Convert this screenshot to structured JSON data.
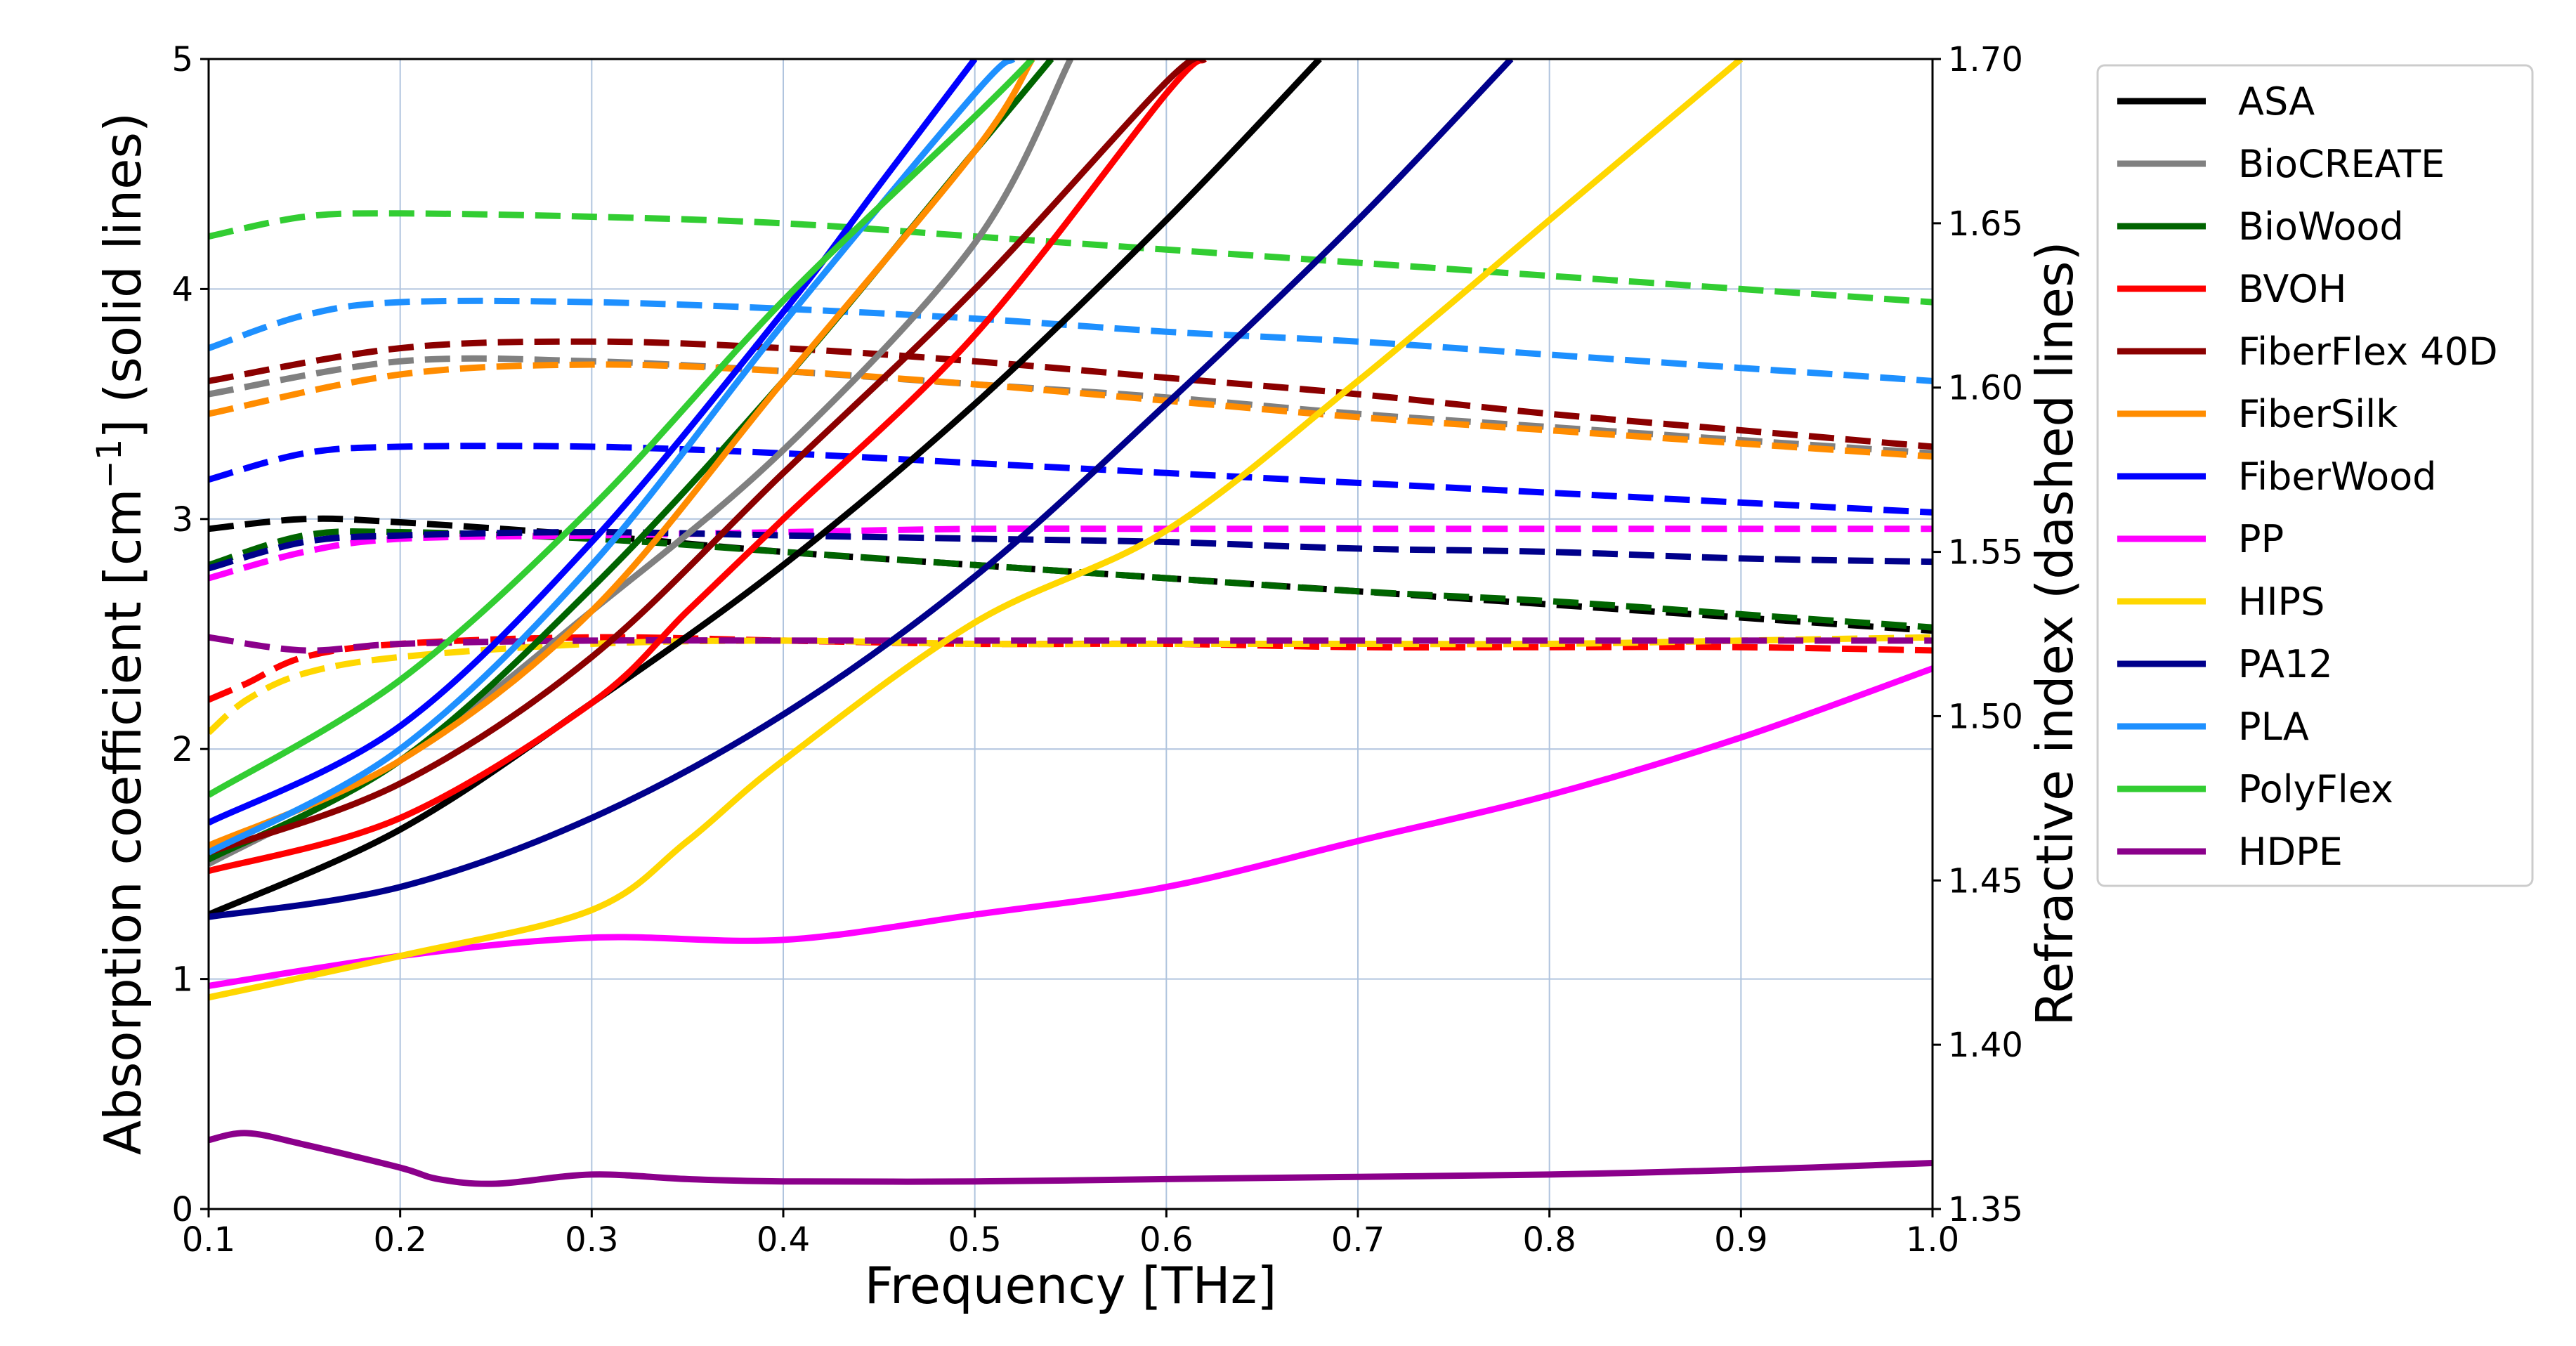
{
  "chart_data": {
    "type": "line",
    "xlabel": "Frequency [THz]",
    "ylabel_left_prefix": "Absorption coefficient [cm",
    "ylabel_left_sup": "−1",
    "ylabel_left_suffix": "] (solid lines)",
    "ylabel_right": "Refractive index (dashed lines)",
    "xlim": [
      0.1,
      1.0
    ],
    "ylim_left": [
      0,
      5
    ],
    "ylim_right": [
      1.35,
      1.7
    ],
    "x_ticks": [
      "0.1",
      "0.2",
      "0.3",
      "0.4",
      "0.5",
      "0.6",
      "0.7",
      "0.8",
      "0.9",
      "1.0"
    ],
    "y_ticks_left": [
      "0",
      "1",
      "2",
      "3",
      "4",
      "5"
    ],
    "y_ticks_right": [
      "1.35",
      "1.40",
      "1.45",
      "1.50",
      "1.55",
      "1.60",
      "1.65",
      "1.70"
    ],
    "grid": true,
    "legend_position": "outside-right-top",
    "series": [
      {
        "name": "ASA",
        "color": "#000000",
        "absorption": {
          "x": [
            0.1,
            0.2,
            0.3,
            0.4,
            0.5,
            0.6,
            0.68
          ],
          "y": [
            1.28,
            1.65,
            2.2,
            2.8,
            3.5,
            4.3,
            5.0
          ]
        },
        "refractive": {
          "x": [
            0.1,
            0.15,
            0.2,
            0.3,
            0.4,
            0.5,
            0.6,
            0.7,
            0.8,
            0.9,
            1.0
          ],
          "y": [
            1.557,
            1.56,
            1.559,
            1.555,
            1.55,
            1.546,
            1.542,
            1.538,
            1.534,
            1.53,
            1.526
          ]
        }
      },
      {
        "name": "BioCREATE",
        "color": "#808080",
        "absorption": {
          "x": [
            0.1,
            0.2,
            0.3,
            0.4,
            0.5,
            0.55
          ],
          "y": [
            1.5,
            1.95,
            2.6,
            3.3,
            4.2,
            5.0
          ]
        },
        "refractive": {
          "x": [
            0.1,
            0.2,
            0.3,
            0.4,
            0.5,
            0.6,
            0.7,
            0.8,
            0.9,
            1.0
          ],
          "y": [
            1.598,
            1.608,
            1.608,
            1.605,
            1.601,
            1.597,
            1.592,
            1.588,
            1.584,
            1.58
          ]
        }
      },
      {
        "name": "BioWood",
        "color": "#006400",
        "absorption": {
          "x": [
            0.1,
            0.2,
            0.3,
            0.4,
            0.5,
            0.54
          ],
          "y": [
            1.52,
            1.95,
            2.7,
            3.6,
            4.6,
            5.0
          ]
        },
        "refractive": {
          "x": [
            0.1,
            0.15,
            0.2,
            0.3,
            0.4,
            0.5,
            0.6,
            0.7,
            0.8,
            0.9,
            1.0
          ],
          "y": [
            1.546,
            1.555,
            1.556,
            1.554,
            1.55,
            1.546,
            1.542,
            1.538,
            1.535,
            1.531,
            1.527
          ]
        }
      },
      {
        "name": "BVOH",
        "color": "#ff0000",
        "absorption": {
          "x": [
            0.1,
            0.2,
            0.3,
            0.35,
            0.4,
            0.5,
            0.6,
            0.62
          ],
          "y": [
            1.47,
            1.7,
            2.2,
            2.6,
            3.0,
            3.8,
            4.85,
            5.0
          ]
        },
        "refractive": {
          "x": [
            0.1,
            0.12,
            0.15,
            0.2,
            0.3,
            0.4,
            0.5,
            0.6,
            0.7,
            0.8,
            0.9,
            1.0
          ],
          "y": [
            1.505,
            1.51,
            1.518,
            1.522,
            1.524,
            1.523,
            1.522,
            1.522,
            1.521,
            1.521,
            1.521,
            1.52
          ]
        }
      },
      {
        "name": "FiberFlex 40D",
        "color": "#8b0000",
        "absorption": {
          "x": [
            0.1,
            0.2,
            0.3,
            0.4,
            0.5,
            0.6,
            0.62
          ],
          "y": [
            1.55,
            1.85,
            2.4,
            3.2,
            4.0,
            4.9,
            5.0
          ]
        },
        "refractive": {
          "x": [
            0.1,
            0.2,
            0.3,
            0.4,
            0.5,
            0.6,
            0.7,
            0.8,
            0.9,
            1.0
          ],
          "y": [
            1.602,
            1.612,
            1.614,
            1.612,
            1.608,
            1.603,
            1.598,
            1.592,
            1.587,
            1.582
          ]
        }
      },
      {
        "name": "FiberSilk",
        "color": "#ff8c00",
        "absorption": {
          "x": [
            0.1,
            0.2,
            0.3,
            0.4,
            0.5,
            0.53
          ],
          "y": [
            1.58,
            1.95,
            2.6,
            3.6,
            4.6,
            5.0
          ]
        },
        "refractive": {
          "x": [
            0.1,
            0.2,
            0.3,
            0.4,
            0.5,
            0.6,
            0.7,
            0.8,
            0.9,
            1.0
          ],
          "y": [
            1.592,
            1.604,
            1.607,
            1.605,
            1.601,
            1.596,
            1.591,
            1.587,
            1.583,
            1.579
          ]
        }
      },
      {
        "name": "FiberWood",
        "color": "#0000ff",
        "absorption": {
          "x": [
            0.1,
            0.2,
            0.3,
            0.4,
            0.45,
            0.5
          ],
          "y": [
            1.68,
            2.1,
            2.9,
            3.9,
            4.45,
            5.0
          ]
        },
        "refractive": {
          "x": [
            0.1,
            0.15,
            0.2,
            0.3,
            0.4,
            0.5,
            0.6,
            0.7,
            0.8,
            0.9,
            1.0
          ],
          "y": [
            1.572,
            1.58,
            1.582,
            1.582,
            1.58,
            1.577,
            1.574,
            1.571,
            1.568,
            1.565,
            1.562
          ]
        }
      },
      {
        "name": "PP",
        "color": "#ff00ff",
        "absorption": {
          "x": [
            0.1,
            0.2,
            0.3,
            0.4,
            0.5,
            0.6,
            0.7,
            0.8,
            0.9,
            1.0
          ],
          "y": [
            0.97,
            1.1,
            1.18,
            1.17,
            1.28,
            1.4,
            1.6,
            1.8,
            2.05,
            2.35
          ]
        },
        "refractive": {
          "x": [
            0.1,
            0.15,
            0.2,
            0.3,
            0.4,
            0.5,
            0.6,
            0.7,
            0.8,
            0.9,
            1.0
          ],
          "y": [
            1.542,
            1.55,
            1.554,
            1.555,
            1.556,
            1.557,
            1.557,
            1.557,
            1.557,
            1.557,
            1.557
          ]
        }
      },
      {
        "name": "HIPS",
        "color": "#ffd700",
        "absorption": {
          "x": [
            0.1,
            0.2,
            0.3,
            0.35,
            0.4,
            0.5,
            0.6,
            0.7,
            0.8,
            0.9
          ],
          "y": [
            0.92,
            1.1,
            1.3,
            1.6,
            1.95,
            2.55,
            2.95,
            3.6,
            4.3,
            5.0
          ]
        },
        "refractive": {
          "x": [
            0.1,
            0.12,
            0.15,
            0.2,
            0.3,
            0.4,
            0.5,
            0.6,
            0.7,
            0.8,
            0.9,
            1.0
          ],
          "y": [
            1.495,
            1.505,
            1.513,
            1.518,
            1.522,
            1.523,
            1.522,
            1.522,
            1.522,
            1.522,
            1.523,
            1.524
          ]
        }
      },
      {
        "name": "PA12",
        "color": "#00008b",
        "absorption": {
          "x": [
            0.1,
            0.2,
            0.3,
            0.4,
            0.5,
            0.6,
            0.7,
            0.78
          ],
          "y": [
            1.27,
            1.4,
            1.7,
            2.15,
            2.75,
            3.5,
            4.3,
            5.0
          ]
        },
        "refractive": {
          "x": [
            0.1,
            0.15,
            0.2,
            0.3,
            0.4,
            0.5,
            0.6,
            0.7,
            0.8,
            0.9,
            1.0
          ],
          "y": [
            1.545,
            1.553,
            1.555,
            1.556,
            1.555,
            1.554,
            1.553,
            1.551,
            1.55,
            1.548,
            1.547
          ]
        }
      },
      {
        "name": "PLA",
        "color": "#1e90ff",
        "absorption": {
          "x": [
            0.1,
            0.2,
            0.3,
            0.4,
            0.5,
            0.52
          ],
          "y": [
            1.55,
            2.0,
            2.8,
            3.85,
            4.85,
            5.0
          ]
        },
        "refractive": {
          "x": [
            0.1,
            0.15,
            0.2,
            0.3,
            0.4,
            0.5,
            0.6,
            0.7,
            0.8,
            0.9,
            1.0
          ],
          "y": [
            1.612,
            1.622,
            1.626,
            1.626,
            1.624,
            1.621,
            1.617,
            1.614,
            1.61,
            1.606,
            1.602
          ]
        }
      },
      {
        "name": "PolyFlex",
        "color": "#32cd32",
        "absorption": {
          "x": [
            0.1,
            0.2,
            0.3,
            0.4,
            0.5,
            0.53
          ],
          "y": [
            1.8,
            2.3,
            3.05,
            3.95,
            4.75,
            5.0
          ]
        },
        "refractive": {
          "x": [
            0.1,
            0.15,
            0.2,
            0.3,
            0.4,
            0.5,
            0.6,
            0.7,
            0.8,
            0.9,
            1.0
          ],
          "y": [
            1.646,
            1.652,
            1.653,
            1.652,
            1.65,
            1.646,
            1.642,
            1.638,
            1.634,
            1.63,
            1.626
          ]
        }
      },
      {
        "name": "HDPE",
        "color": "#8b008b",
        "absorption": {
          "x": [
            0.1,
            0.12,
            0.15,
            0.2,
            0.22,
            0.25,
            0.3,
            0.35,
            0.4,
            0.5,
            0.6,
            0.7,
            0.8,
            0.9,
            1.0
          ],
          "y": [
            0.3,
            0.33,
            0.28,
            0.18,
            0.13,
            0.11,
            0.15,
            0.13,
            0.12,
            0.12,
            0.13,
            0.14,
            0.15,
            0.17,
            0.2
          ]
        },
        "refractive": {
          "x": [
            0.1,
            0.15,
            0.2,
            0.3,
            0.4,
            0.5,
            0.6,
            0.7,
            0.8,
            0.9,
            1.0
          ],
          "y": [
            1.524,
            1.52,
            1.522,
            1.523,
            1.523,
            1.523,
            1.523,
            1.523,
            1.523,
            1.523,
            1.523
          ]
        }
      }
    ]
  }
}
